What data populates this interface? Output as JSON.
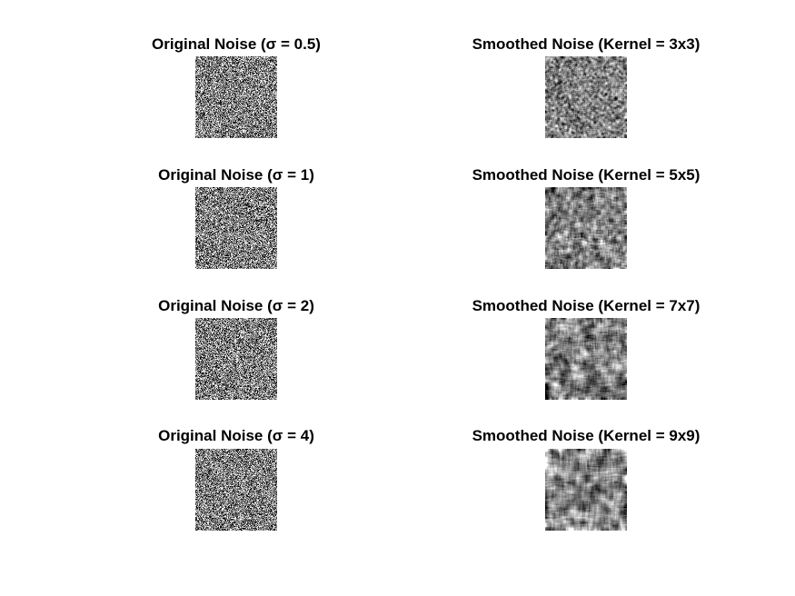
{
  "figure": {
    "background_color": "#ffffff",
    "text_color": "#000000",
    "noise_base_color": "#808080",
    "panels": [
      {
        "title": "Original Noise (σ = 0.5)",
        "kind": "original",
        "sigma": 0.5
      },
      {
        "title": "Smoothed Noise (Kernel = 3x3)",
        "kind": "smoothed",
        "kernel_size": 3
      },
      {
        "title": "Original Noise (σ = 1)",
        "kind": "original",
        "sigma": 1
      },
      {
        "title": "Smoothed Noise (Kernel = 5x5)",
        "kind": "smoothed",
        "kernel_size": 5
      },
      {
        "title": "Original Noise (σ = 2)",
        "kind": "original",
        "sigma": 2
      },
      {
        "title": "Smoothed Noise (Kernel = 7x7)",
        "kind": "smoothed",
        "kernel_size": 7
      },
      {
        "title": "Original Noise (σ = 4)",
        "kind": "original",
        "sigma": 4
      },
      {
        "title": "Smoothed Noise (Kernel = 9x9)",
        "kind": "smoothed",
        "kernel_size": 9
      }
    ]
  }
}
